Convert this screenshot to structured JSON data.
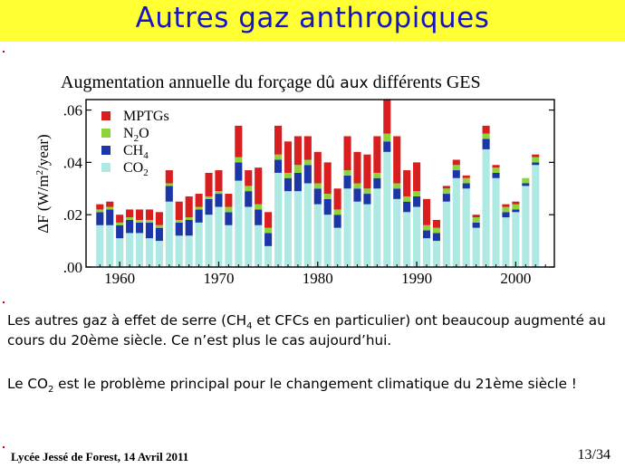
{
  "slide": {
    "title": "Autres gaz anthropiques",
    "chart_title_part1": "Augmentation annuelle du forçage d",
    "chart_title_part2": "û aux",
    "chart_title_part3": " différents GES",
    "para1_a": "Les autres gaz à effet de serre (CH",
    "para1_sub": "4",
    "para1_b": " et CFCs en particulier) ont beaucoup augmenté au cours du 20ème siècle.  Ce n’est plus le cas aujourd’hui.",
    "para2_a": "Le CO",
    "para2_sub": "2",
    "para2_b": " est le problème principal pour le changement climatique du 21ème siècle !",
    "footer_left": "Lycée Jessé de Forest, 14 Avril 2011",
    "footer_right": "13/34"
  },
  "chart_data": {
    "type": "bar",
    "stacked": true,
    "ylabel_main": "ΔF (W/m",
    "ylabel_sup": "2",
    "ylabel_tail": "/year)",
    "ylim": [
      0,
      0.064
    ],
    "yticks": [
      ".00",
      ".02",
      ".04",
      ".06"
    ],
    "ytick_values": [
      0,
      0.02,
      0.04,
      0.06
    ],
    "xticks": [
      "1960",
      "1970",
      "1980",
      "1990",
      "2000"
    ],
    "xtick_values": [
      1960,
      1970,
      1980,
      1990,
      2000
    ],
    "xlim": [
      1956.6,
      2003.9
    ],
    "legend": [
      {
        "name": "MPTGs",
        "sub": "",
        "color": "#d81e1e"
      },
      {
        "name": "N",
        "sub": "2",
        "tail": "O",
        "color": "#8cd43a"
      },
      {
        "name": "CH",
        "sub": "4",
        "tail": "",
        "color": "#1c36a8"
      },
      {
        "name": "CO",
        "sub": "2",
        "tail": "",
        "color": "#aee9e3"
      }
    ],
    "series_order": [
      "CO2",
      "CH4",
      "N2O",
      "MPTGs"
    ],
    "colors": {
      "CO2": "#aee9e3",
      "CH4": "#1c36a8",
      "N2O": "#8cd43a",
      "MPTGs": "#d81e1e"
    },
    "years": [
      1958,
      1959,
      1960,
      1961,
      1962,
      1963,
      1964,
      1965,
      1966,
      1967,
      1968,
      1969,
      1970,
      1971,
      1972,
      1973,
      1974,
      1975,
      1976,
      1977,
      1978,
      1979,
      1980,
      1981,
      1982,
      1983,
      1984,
      1985,
      1986,
      1987,
      1988,
      1989,
      1990,
      1991,
      1992,
      1993,
      1994,
      1995,
      1996,
      1997,
      1998,
      1999,
      2000,
      2001,
      2002
    ],
    "CO2": [
      0.016,
      0.016,
      0.011,
      0.013,
      0.013,
      0.011,
      0.01,
      0.025,
      0.012,
      0.012,
      0.017,
      0.02,
      0.023,
      0.016,
      0.033,
      0.023,
      0.016,
      0.008,
      0.036,
      0.029,
      0.029,
      0.032,
      0.024,
      0.02,
      0.015,
      0.03,
      0.025,
      0.024,
      0.03,
      0.044,
      0.026,
      0.021,
      0.023,
      0.011,
      0.01,
      0.025,
      0.034,
      0.03,
      0.015,
      0.045,
      0.034,
      0.019,
      0.021,
      0.031,
      0.039
    ],
    "CH4": [
      0.005,
      0.006,
      0.005,
      0.005,
      0.004,
      0.006,
      0.005,
      0.006,
      0.005,
      0.006,
      0.005,
      0.006,
      0.005,
      0.005,
      0.007,
      0.006,
      0.006,
      0.005,
      0.005,
      0.005,
      0.007,
      0.007,
      0.006,
      0.006,
      0.005,
      0.005,
      0.005,
      0.004,
      0.004,
      0.004,
      0.004,
      0.004,
      0.004,
      0.003,
      0.003,
      0.003,
      0.003,
      0.002,
      0.002,
      0.004,
      0.002,
      0.002,
      0.001,
      0.001,
      0.001
    ],
    "N2O": [
      0.001,
      0.001,
      0.001,
      0.001,
      0.001,
      0.001,
      0.001,
      0.001,
      0.001,
      0.001,
      0.001,
      0.001,
      0.001,
      0.002,
      0.002,
      0.002,
      0.002,
      0.002,
      0.002,
      0.002,
      0.003,
      0.002,
      0.002,
      0.002,
      0.002,
      0.002,
      0.002,
      0.002,
      0.002,
      0.003,
      0.002,
      0.002,
      0.002,
      0.002,
      0.002,
      0.002,
      0.002,
      0.002,
      0.002,
      0.002,
      0.002,
      0.002,
      0.002,
      0.002,
      0.002
    ],
    "MPTGs": [
      0.002,
      0.002,
      0.003,
      0.003,
      0.004,
      0.004,
      0.005,
      0.005,
      0.007,
      0.008,
      0.005,
      0.009,
      0.008,
      0.005,
      0.012,
      0.006,
      0.014,
      0.006,
      0.011,
      0.012,
      0.011,
      0.009,
      0.012,
      0.012,
      0.008,
      0.013,
      0.012,
      0.013,
      0.014,
      0.013,
      0.018,
      0.01,
      0.011,
      0.01,
      0.003,
      0.001,
      0.002,
      0.001,
      0.001,
      0.003,
      0.001,
      0.001,
      0.001,
      0.0,
      0.001
    ]
  }
}
